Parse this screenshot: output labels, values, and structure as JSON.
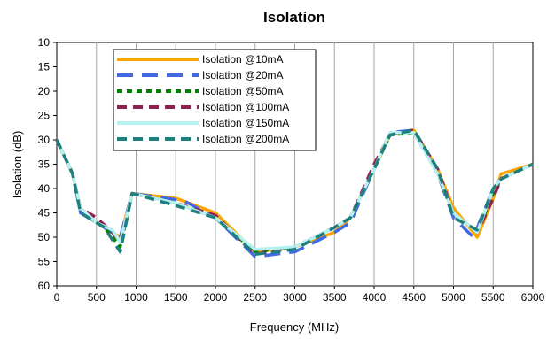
{
  "chart_data": {
    "type": "line",
    "title": "Isolation",
    "xlabel": "Frequency (MHz)",
    "ylabel": "Isolation (dB)",
    "xlim": [
      0,
      6000
    ],
    "ylim": [
      60,
      10
    ],
    "y_inverted": true,
    "xticks": [
      "0",
      "500",
      "1000",
      "1500",
      "2000",
      "2500",
      "3000",
      "3500",
      "4000",
      "4500",
      "5000",
      "5500",
      "6000"
    ],
    "yticks": [
      "10",
      "15",
      "20",
      "25",
      "30",
      "35",
      "40",
      "45",
      "50",
      "55",
      "60"
    ],
    "grid": "vertical",
    "legend_position": "top-left",
    "series": [
      {
        "name": "Isolation @10mA",
        "color": "#FFA500",
        "dash": "solid",
        "x": [
          0,
          200,
          300,
          500,
          700,
          800,
          950,
          1500,
          2000,
          2500,
          3000,
          3500,
          3700,
          4000,
          4200,
          4500,
          4800,
          5000,
          5300,
          5500,
          5600,
          6000
        ],
        "y": [
          30,
          37,
          44,
          47,
          49,
          50,
          41,
          42,
          45,
          53,
          52,
          49,
          46,
          36,
          29,
          28,
          36,
          44,
          50,
          42,
          37,
          35
        ]
      },
      {
        "name": "Isolation @20mA",
        "color": "#4169E1",
        "dash": "long",
        "x": [
          0,
          200,
          300,
          500,
          700,
          800,
          950,
          1600,
          2000,
          2500,
          3000,
          3500,
          3700,
          4000,
          4200,
          4500,
          4800,
          5000,
          5250,
          5500,
          5600,
          6000
        ],
        "y": [
          30,
          37,
          45,
          47,
          49,
          50,
          41,
          42.5,
          46,
          54,
          53,
          49,
          47,
          36,
          28.5,
          28,
          37,
          46,
          50,
          40,
          38,
          35
        ]
      },
      {
        "name": "Isolation @50mA",
        "color": "#008000",
        "dash": "short",
        "x": [
          0,
          200,
          300,
          500,
          600,
          800,
          950,
          1500,
          2000,
          2500,
          3000,
          3500,
          3700,
          4000,
          4200,
          4500,
          4800,
          5000,
          5300,
          5500,
          5600,
          6000
        ],
        "y": [
          30,
          37,
          44.5,
          47,
          48,
          52,
          41,
          43,
          46,
          53,
          52,
          48,
          46,
          36,
          29,
          28.5,
          37,
          45,
          49,
          41,
          38,
          35
        ]
      },
      {
        "name": "Isolation @100mA",
        "color": "#8B2252",
        "dash": "medium",
        "x": [
          0,
          200,
          300,
          500,
          700,
          800,
          950,
          1500,
          2000,
          2500,
          3000,
          3500,
          3700,
          4000,
          4200,
          4500,
          4800,
          5000,
          5300,
          5500,
          5600,
          6000
        ],
        "y": [
          30,
          37,
          44,
          46,
          49,
          51,
          41,
          43,
          45.5,
          53.5,
          52,
          48,
          46,
          35,
          29,
          28,
          36,
          45,
          49,
          42,
          38,
          35
        ]
      },
      {
        "name": "Isolation @150mA",
        "color": "#B7F0F0",
        "dash": "solid",
        "x": [
          0,
          200,
          300,
          500,
          700,
          800,
          950,
          1500,
          2000,
          2500,
          3000,
          3500,
          3700,
          4000,
          4200,
          4500,
          4800,
          5000,
          5300,
          5500,
          5600,
          6000
        ],
        "y": [
          30,
          37,
          44,
          47,
          48.5,
          51,
          41,
          43,
          46,
          52.5,
          52,
          48,
          46,
          36,
          28.5,
          28.5,
          37,
          45,
          49,
          40,
          38,
          35
        ]
      },
      {
        "name": "Isolation @200mA",
        "color": "#1F7F7F",
        "dash": "medium",
        "x": [
          0,
          200,
          300,
          500,
          600,
          800,
          950,
          1500,
          2000,
          2500,
          3000,
          3500,
          3700,
          4000,
          4200,
          4500,
          4800,
          5000,
          5300,
          5500,
          5600,
          6000
        ],
        "y": [
          30,
          37,
          45,
          47,
          48,
          53,
          41,
          43.5,
          46,
          53.5,
          52.5,
          48,
          46,
          36,
          29,
          28,
          36,
          46,
          48.5,
          40,
          38,
          35
        ]
      }
    ]
  }
}
